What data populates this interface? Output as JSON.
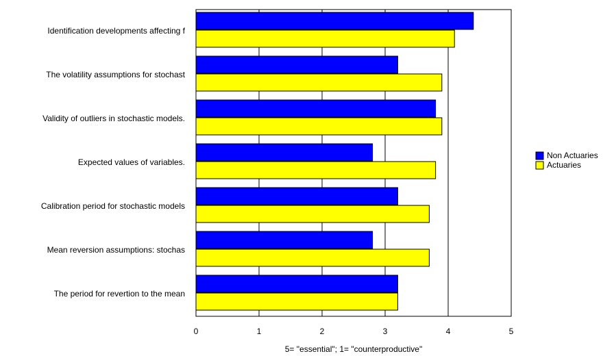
{
  "chart_data": {
    "type": "hbar",
    "x_label": "5= \"essential\"; 1= \"counterproductive\"",
    "categories": [
      "Identification developments affecting f",
      "The volatility assumptions for stochast",
      "Validity of outliers in stochastic models.",
      "Expected values of variables.",
      "Calibration period for stochastic models",
      "Mean reversion assumptions: stochas",
      "The period for revertion to the mean"
    ],
    "series": [
      {
        "name": "Non Actuaries",
        "color": "#0000ff",
        "values": [
          4.4,
          3.2,
          3.8,
          2.8,
          3.2,
          2.8,
          3.2
        ]
      },
      {
        "name": "Actuaries",
        "color": "#ffff00",
        "values": [
          4.1,
          3.9,
          3.9,
          3.8,
          3.7,
          3.7,
          3.2
        ]
      }
    ],
    "xlim": [
      0,
      5
    ],
    "xticks": [
      0,
      1,
      2,
      3,
      4,
      5
    ],
    "grid": true,
    "legend": "right"
  }
}
